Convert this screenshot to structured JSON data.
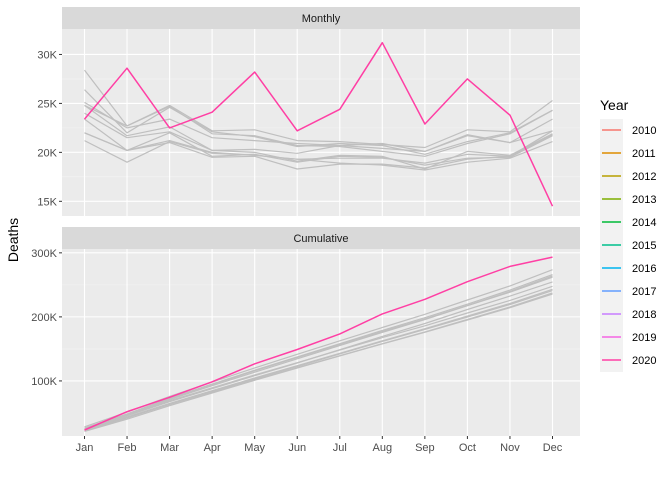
{
  "chart_data": {
    "type": "line",
    "ylabel": "Deaths",
    "x": [
      "Jan",
      "Feb",
      "Mar",
      "Apr",
      "May",
      "Jun",
      "Jul",
      "Aug",
      "Sep",
      "Oct",
      "Nov",
      "Dec"
    ],
    "legend": {
      "title": "Year",
      "position": "right",
      "entries": [
        {
          "label": "2010",
          "color": "#F8766D"
        },
        {
          "label": "2011",
          "color": "#DE8C00"
        },
        {
          "label": "2012",
          "color": "#B79F00"
        },
        {
          "label": "2013",
          "color": "#7CAE00"
        },
        {
          "label": "2014",
          "color": "#00BA38"
        },
        {
          "label": "2015",
          "color": "#00C08B"
        },
        {
          "label": "2016",
          "color": "#00B4F0"
        },
        {
          "label": "2017",
          "color": "#619CFF"
        },
        {
          "label": "2018",
          "color": "#C77CFF"
        },
        {
          "label": "2019",
          "color": "#F564E3"
        },
        {
          "label": "2020",
          "color": "#FF3FA4"
        }
      ]
    },
    "panels": [
      {
        "strip": "Monthly",
        "ylim": [
          13500,
          32600
        ],
        "yticks": [
          15000,
          20000,
          25000,
          30000
        ],
        "ytick_labels": [
          "15K",
          "20K",
          "25K",
          "30K"
        ],
        "grid": true,
        "series": [
          {
            "label": "2010",
            "values": [
              28400,
              22700,
              24800,
              22200,
              22300,
              21200,
              21100,
              20800,
              20500,
              22300,
              22100,
              25300
            ]
          },
          {
            "label": "2011",
            "values": [
              26400,
              22000,
              24600,
              22100,
              21600,
              20600,
              20900,
              20700,
              19800,
              21100,
              22000,
              24300
            ]
          },
          {
            "label": "2012",
            "values": [
              25100,
              22500,
              23400,
              21500,
              21200,
              20900,
              20700,
              20400,
              20100,
              21700,
              21000,
              23400
            ]
          },
          {
            "label": "2013",
            "values": [
              24800,
              22700,
              24700,
              21900,
              21700,
              20700,
              20600,
              20100,
              19600,
              20900,
              21900,
              24300
            ]
          },
          {
            "label": "2014",
            "values": [
              24000,
              21500,
              22100,
              20200,
              20300,
              19900,
              20700,
              20900,
              20100,
              21800,
              21000,
              22200
            ]
          },
          {
            "label": "2015",
            "values": [
              23400,
              20200,
              21200,
              20000,
              19700,
              19300,
              19400,
              19400,
              18900,
              19800,
              19600,
              22200
            ]
          },
          {
            "label": "2016",
            "values": [
              22000,
              20200,
              22000,
              19600,
              19800,
              19000,
              19600,
              19500,
              18700,
              19400,
              19500,
              21700
            ]
          },
          {
            "label": "2017",
            "values": [
              21200,
              19000,
              21100,
              19900,
              19700,
              19300,
              18900,
              18700,
              18200,
              19000,
              19400,
              21100
            ]
          },
          {
            "label": "2018",
            "values": [
              22000,
              20200,
              21000,
              19500,
              19600,
              18300,
              18800,
              18800,
              18400,
              19300,
              19600,
              21800
            ]
          },
          {
            "label": "2019",
            "values": [
              24800,
              21700,
              22600,
              20200,
              20000,
              19100,
              19700,
              19600,
              18300,
              20100,
              19700,
              21900
            ]
          },
          {
            "label": "2020",
            "values": [
              23400,
              28600,
              22500,
              24100,
              28200,
              22200,
              24400,
              31200,
              22900,
              27500,
              23800,
              14500
            ]
          }
        ]
      },
      {
        "strip": "Cumulative",
        "ylim": [
          14000,
          306000
        ],
        "yticks": [
          100000,
          200000,
          300000
        ],
        "ytick_labels": [
          "100K",
          "200K",
          "300K"
        ],
        "grid": true,
        "series": [
          {
            "label": "2010",
            "values": [
              28400,
              51100,
              75900,
              98100,
              120400,
              141600,
              162700,
              183500,
              204000,
              226300,
              248400,
              273700
            ]
          },
          {
            "label": "2011",
            "values": [
              26400,
              48400,
              73000,
              95100,
              116700,
              137300,
              158200,
              178900,
              198700,
              219800,
              241800,
              266100
            ]
          },
          {
            "label": "2012",
            "values": [
              25100,
              47600,
              71000,
              92500,
              113700,
              134600,
              155300,
              175700,
              195800,
              217500,
              238500,
              261900
            ]
          },
          {
            "label": "2013",
            "values": [
              24800,
              47500,
              72200,
              94100,
              115800,
              136500,
              157100,
              177200,
              196800,
              217700,
              239600,
              263900
            ]
          },
          {
            "label": "2014",
            "values": [
              24000,
              45500,
              67600,
              87800,
              108100,
              128000,
              148700,
              169600,
              189700,
              211500,
              232500,
              254700
            ]
          },
          {
            "label": "2015",
            "values": [
              23400,
              43600,
              64800,
              84800,
              104500,
              123800,
              143200,
              162600,
              181500,
              201300,
              220900,
              243100
            ]
          },
          {
            "label": "2016",
            "values": [
              22000,
              42200,
              64200,
              83800,
              103600,
              122600,
              142200,
              161700,
              180400,
              199800,
              219300,
              241000
            ]
          },
          {
            "label": "2017",
            "values": [
              21200,
              40200,
              61300,
              81200,
              100900,
              120200,
              139100,
              157800,
              176000,
              195000,
              214400,
              235500
            ]
          },
          {
            "label": "2018",
            "values": [
              22000,
              42200,
              63200,
              82700,
              102300,
              120600,
              139400,
              158200,
              176600,
              195900,
              215500,
              237300
            ]
          },
          {
            "label": "2019",
            "values": [
              24800,
              46500,
              69100,
              89300,
              109300,
              128400,
              148100,
              167700,
              186000,
              206100,
              225800,
              247700
            ]
          },
          {
            "label": "2020",
            "values": [
              23400,
              52000,
              74500,
              98600,
              126800,
              149000,
              173400,
              204600,
              227500,
              255000,
              278800,
              293300
            ]
          }
        ]
      }
    ],
    "gray_color": "#BFBFBF",
    "highlight": "2020"
  }
}
